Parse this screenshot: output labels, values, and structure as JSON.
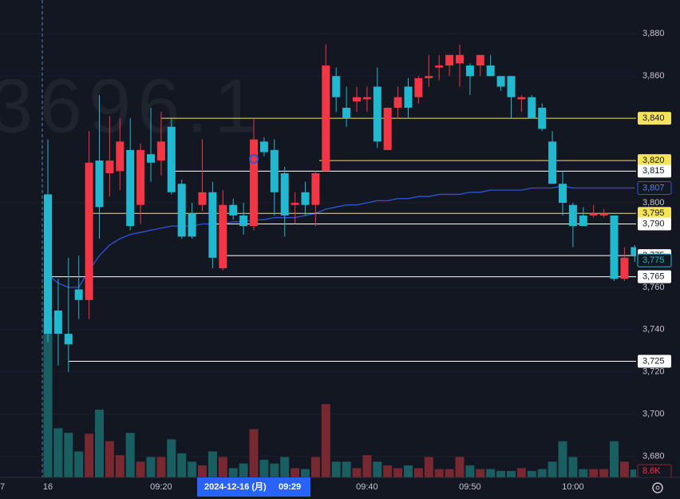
{
  "chart_data": {
    "type": "candlestick",
    "watermark": "3696.1",
    "up_color": "#f23645",
    "down_color": "#22b8cf",
    "ma_color": "#2f56d8",
    "categories": [
      "16",
      null,
      null,
      null,
      null,
      null,
      null,
      null,
      null,
      null,
      null,
      "09:20",
      null,
      null,
      null,
      null,
      null,
      null,
      null,
      null,
      null,
      null,
      null,
      null,
      null,
      null,
      null,
      null,
      null,
      null,
      null,
      "09:40",
      null,
      null,
      null,
      null,
      null,
      null,
      null,
      null,
      null,
      "09:50",
      null,
      null,
      null,
      null,
      null,
      null,
      null,
      null,
      null,
      "10:00",
      null,
      null,
      null,
      null,
      null,
      null
    ],
    "prev_day_label": "7",
    "open": [
      3804,
      3749,
      3738,
      3759,
      3754,
      3820,
      3814,
      3815,
      3825,
      3799,
      3823,
      3820,
      3836,
      3809,
      3795,
      3799,
      3805,
      3769,
      3799,
      3794,
      3789,
      3829,
      3825,
      3814,
      3799,
      3805,
      3799,
      3815,
      3860,
      3845,
      3848,
      3849,
      3855,
      3825,
      3845,
      3855,
      3850,
      3859,
      3864,
      3865,
      3866,
      3865,
      3865,
      3865,
      3860,
      3860,
      3849,
      3850,
      3845,
      3829,
      3809,
      3799,
      3794,
      3794,
      3794,
      3794,
      3764,
      3779
    ],
    "high": [
      3830,
      3764,
      3774,
      3775,
      3834,
      3851,
      3841,
      3840,
      3840,
      3828,
      3845,
      3843,
      3840,
      3811,
      3800,
      3830,
      3810,
      3806,
      3802,
      3800,
      3840,
      3831,
      3830,
      3817,
      3805,
      3810,
      3815,
      3875,
      3864,
      3855,
      3855,
      3855,
      3864,
      3845,
      3855,
      3859,
      3860,
      3870,
      3870,
      3870,
      3875,
      3866,
      3870,
      3870,
      3860,
      3860,
      3851,
      3851,
      3847,
      3834,
      3815,
      3800,
      3798,
      3799,
      3797,
      3794,
      3779,
      3780
    ],
    "low": [
      3734,
      3723,
      3720,
      3745,
      3745,
      3783,
      3803,
      3806,
      3787,
      3790,
      3810,
      3813,
      3804,
      3783,
      3783,
      3796,
      3769,
      3768,
      3792,
      3785,
      3787,
      3822,
      3794,
      3784,
      3790,
      3794,
      3789,
      3815,
      3843,
      3836,
      3843,
      3843,
      3826,
      3825,
      3840,
      3840,
      3847,
      3855,
      3858,
      3860,
      3855,
      3851,
      3860,
      3860,
      3853,
      3840,
      3843,
      3840,
      3834,
      3809,
      3794,
      3779,
      3789,
      3793,
      3793,
      3763,
      3763,
      3772
    ],
    "close": [
      3738,
      3738,
      3733,
      3754,
      3819,
      3798,
      3820,
      3829,
      3789,
      3825,
      3819,
      3829,
      3805,
      3784,
      3784,
      3805,
      3774,
      3799,
      3794,
      3789,
      3830,
      3824,
      3805,
      3794,
      3800,
      3799,
      3814,
      3865,
      3850,
      3840,
      3850,
      3850,
      3829,
      3845,
      3850,
      3845,
      3859,
      3860,
      3865,
      3870,
      3870,
      3860,
      3870,
      3860,
      3855,
      3850,
      3850,
      3840,
      3835,
      3809,
      3800,
      3789,
      3789,
      3795,
      3795,
      3764,
      3774,
      3775
    ],
    "volume": [
      172,
      53,
      48,
      28,
      47,
      73,
      39,
      24,
      48,
      17,
      22,
      22,
      41,
      26,
      17,
      13,
      28,
      22,
      10,
      15,
      52,
      19,
      15,
      22,
      10,
      9,
      22,
      79,
      17,
      17,
      10,
      24,
      17,
      13,
      10,
      13,
      10,
      22,
      9,
      9,
      22,
      13,
      9,
      9,
      7,
      7,
      10,
      7,
      9,
      17,
      39,
      22,
      9,
      9,
      9,
      39,
      17,
      8.6
    ],
    "volume_last_label": "8.6K",
    "volume_lim": [
      0,
      172
    ],
    "ma": [
      3766,
      3762,
      3760,
      3760,
      3768,
      3775,
      3780,
      3783,
      3785,
      3786,
      3787,
      3788,
      3789,
      3789,
      3789,
      3790,
      3790,
      3790,
      3791,
      3791,
      3792,
      3792,
      3793,
      3793,
      3793,
      3794,
      3795,
      3797,
      3798,
      3799,
      3799,
      3800,
      3801,
      3801,
      3802,
      3802,
      3803,
      3803,
      3804,
      3804,
      3804,
      3805,
      3805,
      3806,
      3806,
      3806,
      3806,
      3807,
      3807,
      3807,
      3808,
      3807,
      3807,
      3807,
      3807,
      3807,
      3807,
      3807
    ],
    "ma_label": {
      "value": 3807,
      "label": "3,807"
    },
    "last_price": {
      "value": 3775,
      "label": "3,775"
    },
    "ylim": [
      3670,
      3896
    ],
    "yticks": [
      {
        "value": 3880,
        "label": "3,880"
      },
      {
        "value": 3860,
        "label": "3,860"
      },
      {
        "value": 3800,
        "label": "3,800"
      },
      {
        "value": 3760,
        "label": "3,760"
      },
      {
        "value": 3740,
        "label": "3,740"
      },
      {
        "value": 3720,
        "label": "3,720"
      },
      {
        "value": 3700,
        "label": "3,700"
      },
      {
        "value": 3680,
        "label": "3,680"
      }
    ],
    "price_lines": [
      {
        "value": 3840,
        "label": "3,840",
        "color": "#f5e35a"
      },
      {
        "value": 3820,
        "label": "3,820",
        "color": "#f5e35a"
      },
      {
        "value": 3815,
        "label": "3,815",
        "color": "#ffffff"
      },
      {
        "value": 3795,
        "label": "3,795",
        "color": "#f5e35a"
      },
      {
        "value": 3790,
        "label": "3,790",
        "color": "#ffffff"
      },
      {
        "value": 3775,
        "label": "3,775",
        "color": "#ffffff"
      },
      {
        "value": 3765,
        "label": "3,765",
        "color": "#ffffff"
      },
      {
        "value": 3725,
        "label": "3,725",
        "color": "#ffffff"
      }
    ],
    "crosshair": {
      "date": "2024-12-16 (月)",
      "time": "09:29"
    }
  }
}
